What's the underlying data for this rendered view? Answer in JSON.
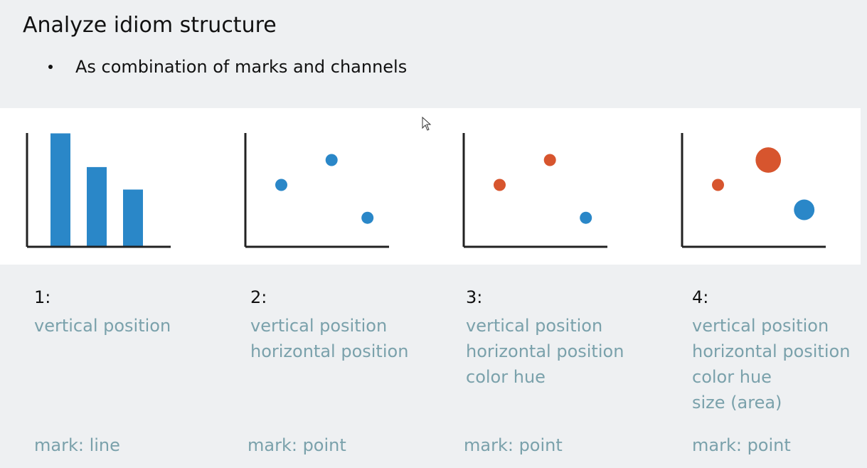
{
  "title": "Analyze idiom structure",
  "bullet": "As combination of marks and channels",
  "colors": {
    "blue": "#2a87c8",
    "orange": "#d7552e",
    "axis": "#222222",
    "label": "#7aa1ab"
  },
  "examples": [
    {
      "number": "1:",
      "channels": [
        "vertical position"
      ],
      "mark": "mark: line",
      "chart_type": "bar",
      "values": [
        1.0,
        0.7,
        0.5
      ],
      "color": "blue"
    },
    {
      "number": "2:",
      "channels": [
        "vertical position",
        "horizontal position"
      ],
      "mark": "mark: point",
      "chart_type": "scatter",
      "points": [
        {
          "x": 0.25,
          "y": 0.55,
          "size": 1,
          "color": "blue"
        },
        {
          "x": 0.6,
          "y": 0.8,
          "size": 1,
          "color": "blue"
        },
        {
          "x": 0.85,
          "y": 0.22,
          "size": 1,
          "color": "blue"
        }
      ]
    },
    {
      "number": "3:",
      "channels": [
        "vertical position",
        "horizontal position",
        "color hue"
      ],
      "mark": "mark: point",
      "chart_type": "scatter",
      "points": [
        {
          "x": 0.25,
          "y": 0.55,
          "size": 1,
          "color": "orange"
        },
        {
          "x": 0.6,
          "y": 0.8,
          "size": 1,
          "color": "orange"
        },
        {
          "x": 0.85,
          "y": 0.22,
          "size": 1,
          "color": "blue"
        }
      ]
    },
    {
      "number": "4:",
      "channels": [
        "vertical position",
        "horizontal position",
        "color hue",
        "size (area)"
      ],
      "mark": "mark: point",
      "chart_type": "scatter",
      "points": [
        {
          "x": 0.25,
          "y": 0.55,
          "size": 1,
          "color": "orange"
        },
        {
          "x": 0.6,
          "y": 0.8,
          "size": 2.1,
          "color": "orange"
        },
        {
          "x": 0.85,
          "y": 0.3,
          "size": 1.7,
          "color": "blue"
        }
      ]
    }
  ]
}
